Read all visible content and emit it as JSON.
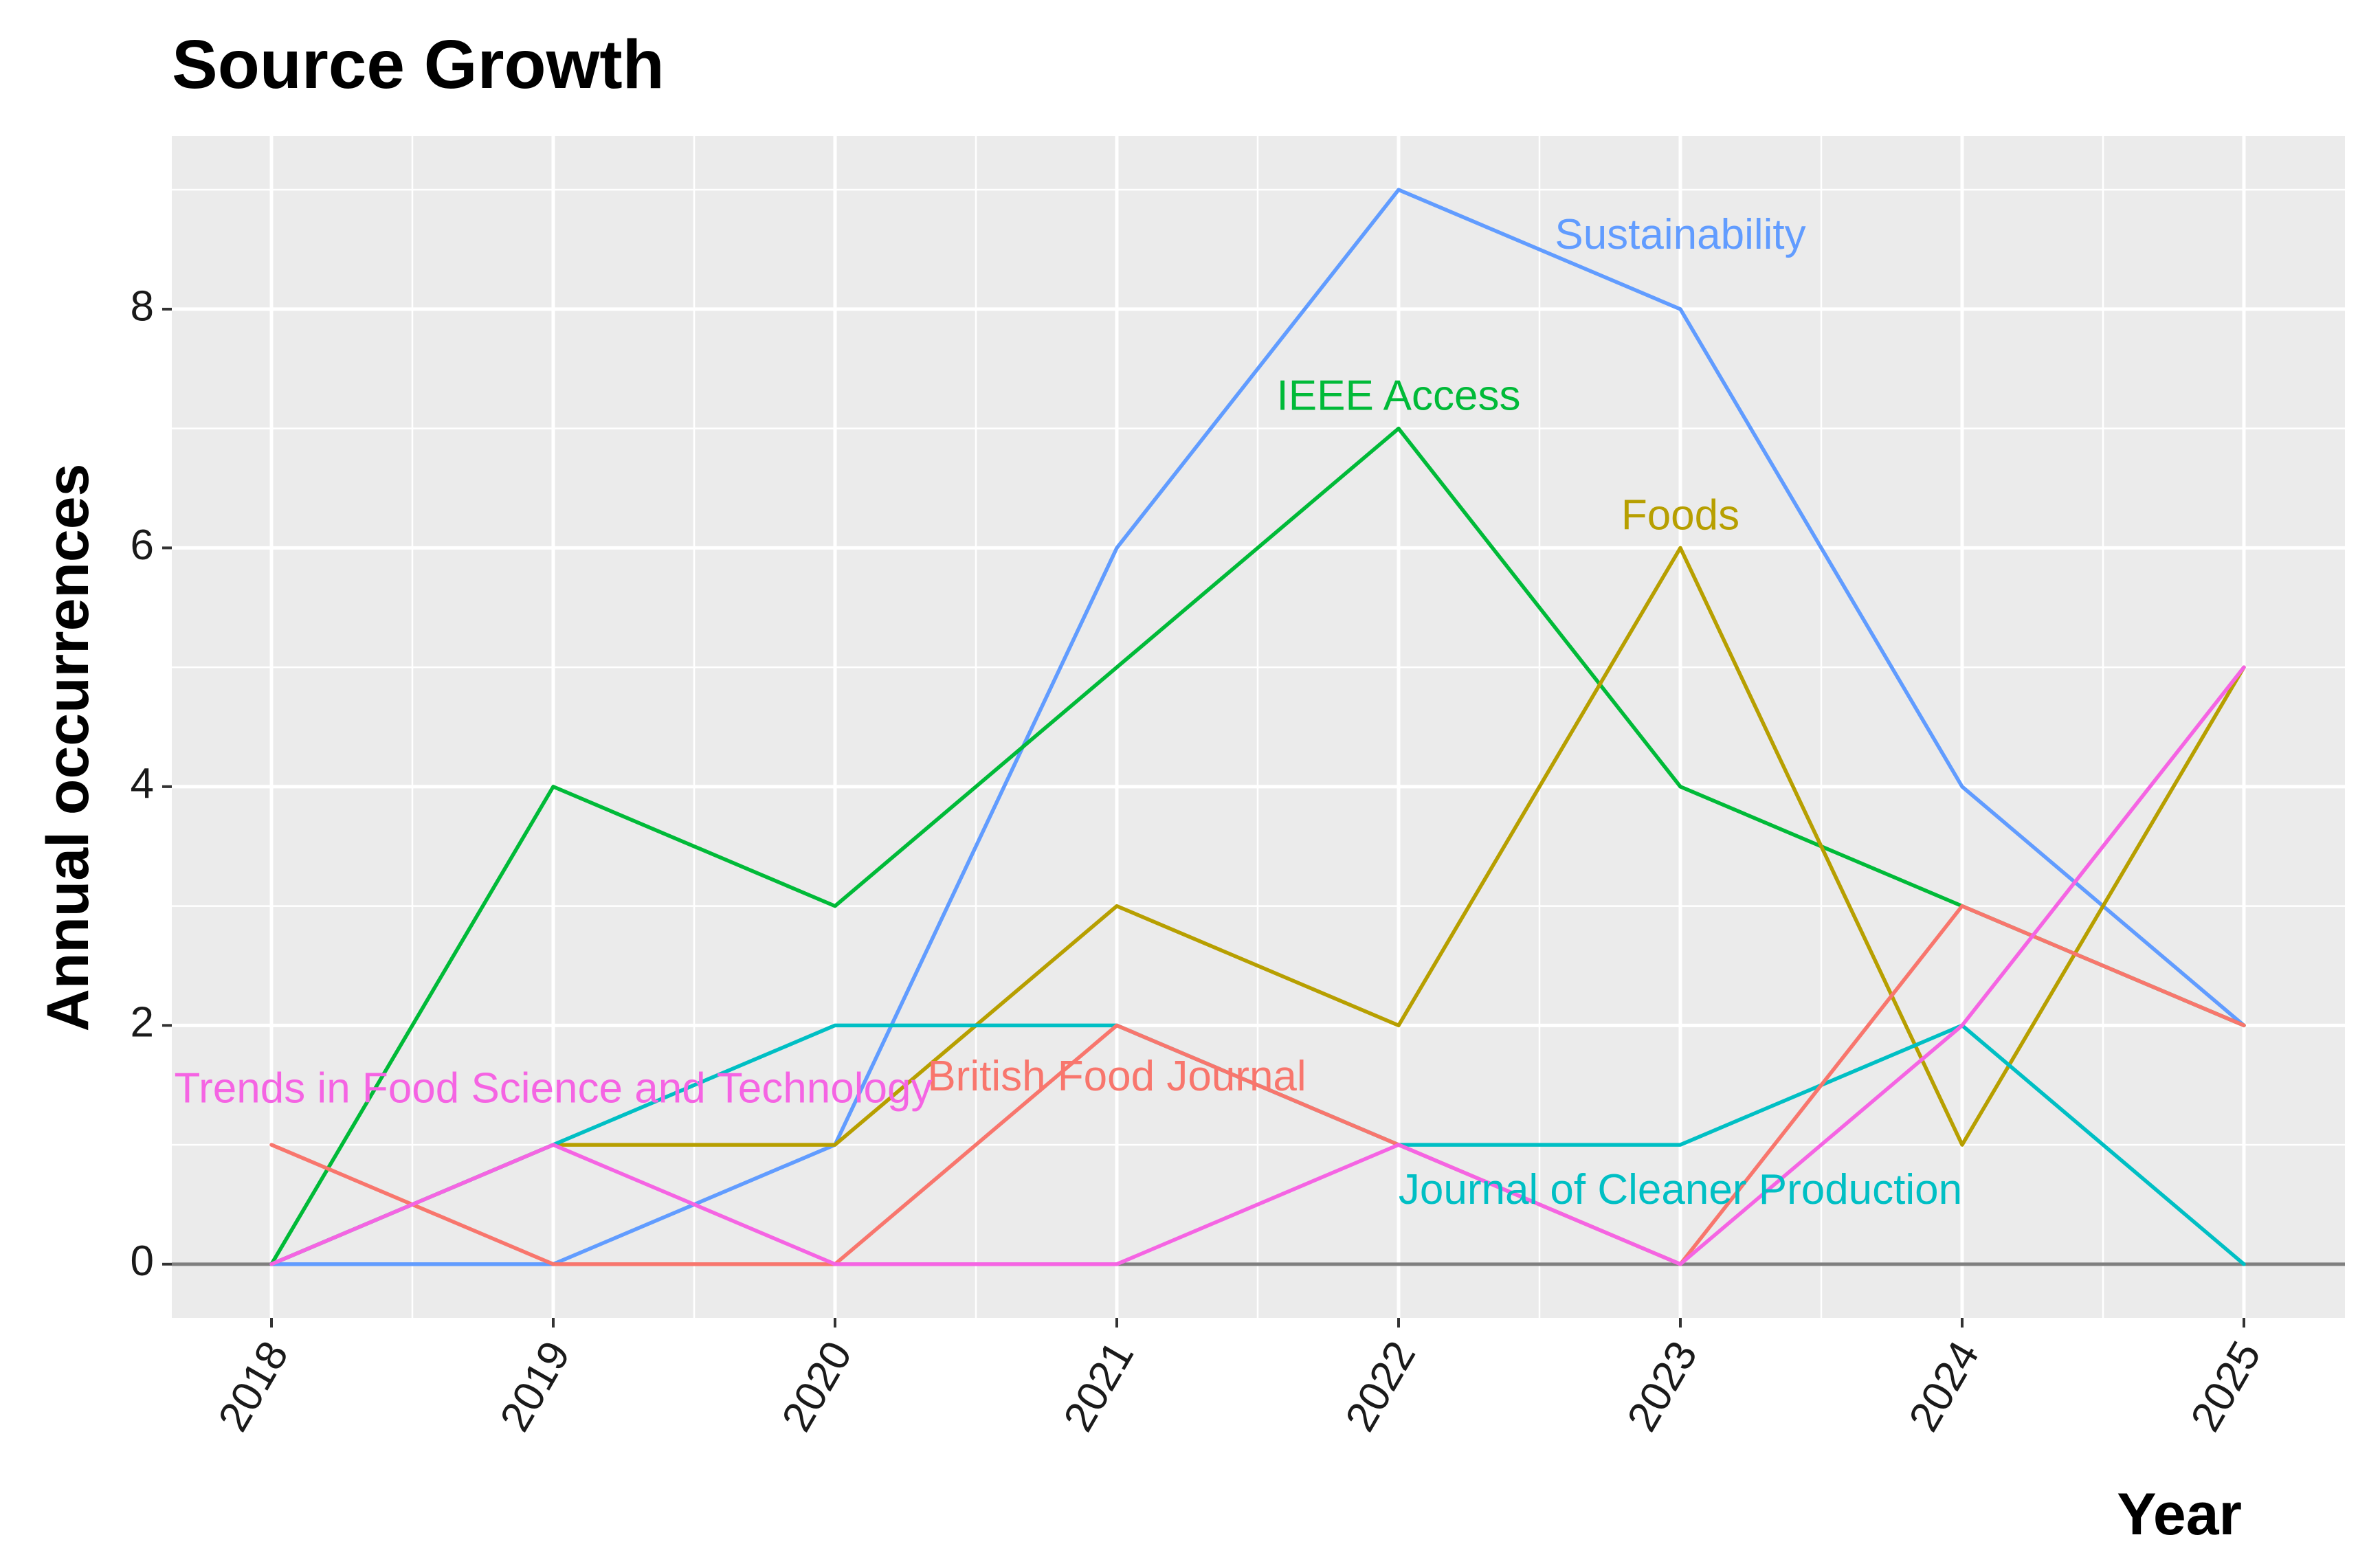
{
  "chart_data": {
    "type": "line",
    "title": "Source Growth",
    "xlabel": "Year",
    "ylabel": "Annual occurrences",
    "x": [
      "2018",
      "2019",
      "2020",
      "2021",
      "2022",
      "2023",
      "2024",
      "2025"
    ],
    "ylim": [
      -0.45,
      9.45
    ],
    "y_ticks": [
      "0",
      "2",
      "4",
      "6",
      "8"
    ],
    "grid": true,
    "legend": "inline labels",
    "series": [
      {
        "name": "Sustainability",
        "color": "#619CFF",
        "values": [
          0,
          0,
          1,
          6,
          9,
          8,
          4,
          2
        ],
        "label_anchor": {
          "year": "2023",
          "value": 8.6
        }
      },
      {
        "name": "IEEE Access",
        "color": "#00BA38",
        "values": [
          0,
          4,
          3,
          5,
          7,
          4,
          3,
          2
        ],
        "label_anchor": {
          "year": "2022",
          "value": 7.25
        }
      },
      {
        "name": "Foods",
        "color": "#B79F00",
        "values": [
          0,
          1,
          1,
          3,
          2,
          6,
          1,
          5
        ],
        "label_anchor": {
          "year": "2023",
          "value": 6.25
        }
      },
      {
        "name": "Journal of Cleaner Production",
        "color": "#00BFC4",
        "values": [
          0,
          1,
          2,
          2,
          1,
          1,
          2,
          0
        ],
        "label_anchor": {
          "year": "2023",
          "value": 0.6
        }
      },
      {
        "name": "British Food Journal",
        "color": "#F8766D",
        "values": [
          1,
          0,
          0,
          2,
          1,
          0,
          3,
          2
        ],
        "label_anchor": {
          "year": "2021",
          "value": 1.55
        }
      },
      {
        "name": "Trends in Food Science and Technology",
        "color": "#F564E3",
        "values": [
          0,
          1,
          0,
          0,
          1,
          0,
          2,
          5
        ],
        "label_anchor": {
          "year": "2019",
          "value": 1.45
        }
      }
    ],
    "baseline_value": 0,
    "baseline_color": "#7F7F7F",
    "panel_background": "#EBEBEB",
    "grid_color": "#FFFFFF"
  }
}
